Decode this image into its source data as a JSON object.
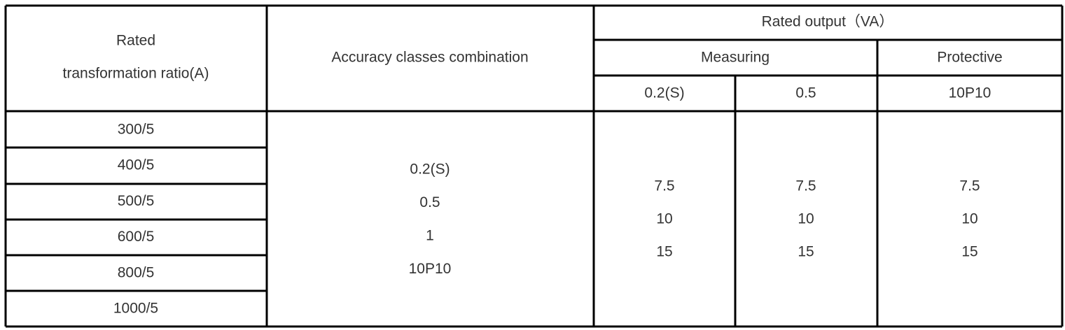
{
  "table": {
    "header": {
      "ratio": [
        "Rated",
        "transformation ratio(A)"
      ],
      "accuracy": "Accuracy classes combination",
      "rated_output": "Rated output（VA）",
      "measuring": "Measuring",
      "protective": "Protective",
      "subheaders": [
        "0.2(S)",
        "0.5",
        "10P10"
      ]
    },
    "ratios": [
      "300/5",
      "400/5",
      "500/5",
      "600/5",
      "800/5",
      "1000/5"
    ],
    "accuracy_classes": [
      "0.2(S)",
      "0.5",
      "1",
      "10P10"
    ],
    "outputs": [
      [
        "7.5",
        "10",
        "15"
      ],
      [
        "7.5",
        "10",
        "15"
      ],
      [
        "7.5",
        "10",
        "15"
      ]
    ]
  }
}
